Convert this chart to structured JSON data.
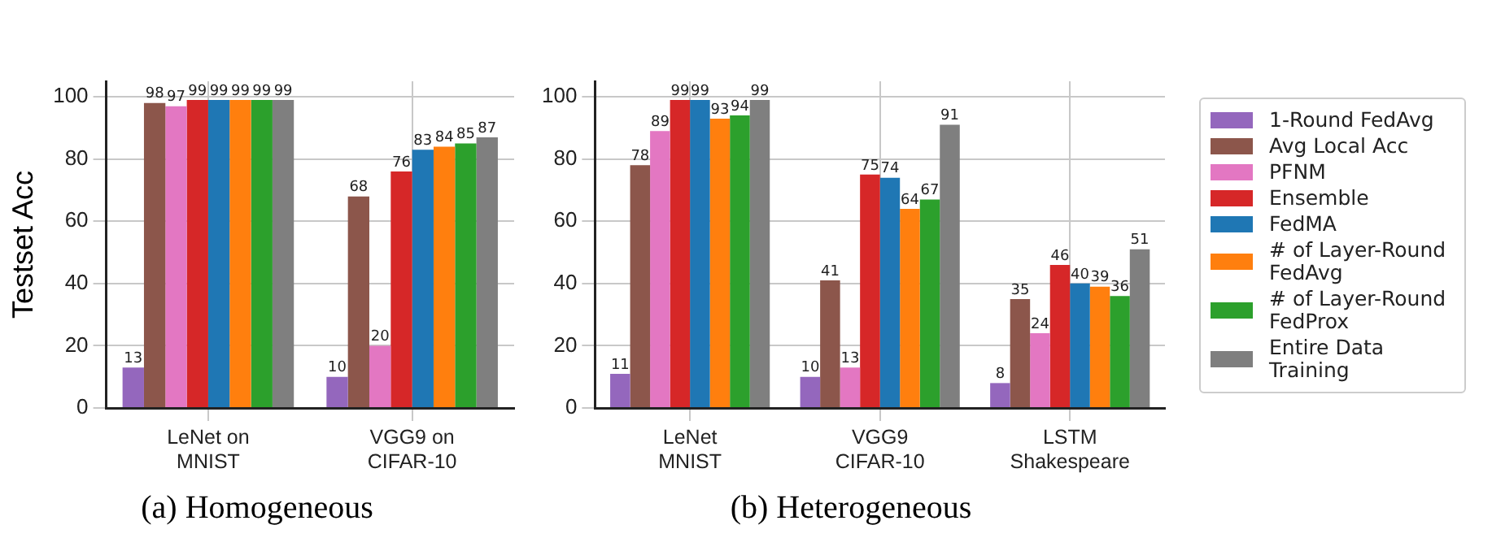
{
  "chart_data": [
    {
      "type": "bar",
      "title": "(a) Homogeneous",
      "ylabel": "Testset Acc",
      "categories": [
        "LeNet on\nMNIST",
        "VGG9 on\nCIFAR-10"
      ],
      "ylim": [
        0,
        105
      ],
      "yticks": [
        0,
        20,
        40,
        60,
        80,
        100
      ],
      "grid": true,
      "legend": false,
      "data_labels": true,
      "series": [
        {
          "color": "#9467bd",
          "values": [
            13,
            10
          ]
        },
        {
          "color": "#8c564b",
          "values": [
            98,
            68
          ]
        },
        {
          "color": "#e377c2",
          "values": [
            97,
            20
          ]
        },
        {
          "color": "#d62728",
          "values": [
            99,
            76
          ]
        },
        {
          "color": "#1f77b4",
          "values": [
            99,
            83
          ]
        },
        {
          "color": "#ff7f0e",
          "values": [
            99,
            84
          ]
        },
        {
          "color": "#2ca02c",
          "values": [
            99,
            85
          ]
        },
        {
          "color": "#7f7f7f",
          "values": [
            99,
            87
          ]
        }
      ]
    },
    {
      "type": "bar",
      "title": "(b) Heterogeneous",
      "categories": [
        "LeNet\nMNIST",
        "VGG9\nCIFAR-10",
        "LSTM\nShakespeare"
      ],
      "ylim": [
        0,
        105
      ],
      "yticks": [
        0,
        20,
        40,
        60,
        80,
        100
      ],
      "grid": true,
      "legend": "right",
      "data_labels": true,
      "series": [
        {
          "name": "1-Round FedAvg",
          "color": "#9467bd",
          "values": [
            11,
            10,
            8
          ]
        },
        {
          "name": "Avg Local Acc",
          "color": "#8c564b",
          "values": [
            78,
            41,
            35
          ]
        },
        {
          "name": "PFNM",
          "color": "#e377c2",
          "values": [
            89,
            13,
            24
          ]
        },
        {
          "name": "Ensemble",
          "color": "#d62728",
          "values": [
            99,
            75,
            46
          ]
        },
        {
          "name": "FedMA",
          "color": "#1f77b4",
          "values": [
            99,
            74,
            40
          ]
        },
        {
          "name": "# of Layer-Round FedAvg",
          "color": "#ff7f0e",
          "values": [
            93,
            64,
            39
          ]
        },
        {
          "name": "# of Layer-Round FedProx",
          "color": "#2ca02c",
          "values": [
            94,
            67,
            36
          ]
        },
        {
          "name": "Entire Data Training",
          "color": "#7f7f7f",
          "values": [
            99,
            91,
            51
          ]
        }
      ]
    }
  ]
}
